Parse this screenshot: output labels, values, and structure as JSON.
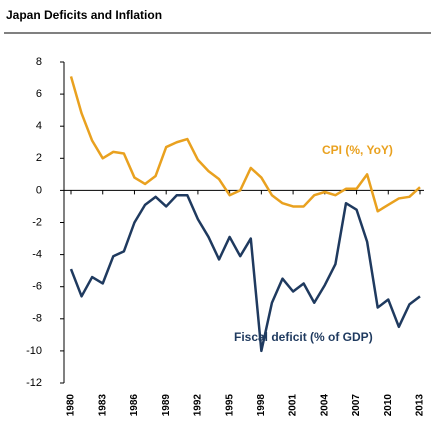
{
  "chart_data": {
    "type": "line",
    "title": "Japan Deficits and Inflation",
    "x": [
      1980,
      1981,
      1982,
      1983,
      1984,
      1985,
      1986,
      1987,
      1988,
      1989,
      1990,
      1991,
      1992,
      1993,
      1994,
      1995,
      1996,
      1997,
      1998,
      1999,
      2000,
      2001,
      2002,
      2003,
      2004,
      2005,
      2006,
      2007,
      2008,
      2009,
      2010,
      2011,
      2012,
      2013
    ],
    "series": [
      {
        "name": "CPI (%, YoY)",
        "color": "#e9a11f",
        "values": [
          7.1,
          4.8,
          3.1,
          2.0,
          2.4,
          2.3,
          0.8,
          0.4,
          0.9,
          2.7,
          3.0,
          3.2,
          1.9,
          1.2,
          0.7,
          -0.3,
          0.0,
          1.4,
          0.8,
          -0.3,
          -0.8,
          -1.0,
          -1.0,
          -0.3,
          -0.1,
          -0.3,
          0.1,
          0.1,
          1.0,
          -1.3,
          -0.9,
          -0.5,
          -0.4,
          0.2
        ]
      },
      {
        "name": "Fiscal deficit (% of GDP)",
        "color": "#1f3a5f",
        "values": [
          -4.9,
          -6.6,
          -5.4,
          -5.8,
          -4.1,
          -3.8,
          -2.0,
          -0.9,
          -0.4,
          -1.0,
          -0.3,
          -0.3,
          -1.8,
          -2.9,
          -4.3,
          -2.9,
          -4.1,
          -3.0,
          -10.0,
          -7.0,
          -5.5,
          -6.3,
          -5.8,
          -7.0,
          -5.9,
          -4.6,
          -0.8,
          -1.2,
          -3.2,
          -7.3,
          -6.8,
          -8.5,
          -7.1,
          -6.6
        ]
      }
    ],
    "xlim": [
      1980,
      2013
    ],
    "xticks": [
      1980,
      1983,
      1986,
      1989,
      1992,
      1995,
      1998,
      2001,
      2004,
      2007,
      2010,
      2013
    ],
    "ylim": [
      -12,
      8
    ],
    "yticks": [
      -12,
      -10,
      -8,
      -6,
      -4,
      -2,
      0,
      2,
      4,
      6,
      8
    ]
  }
}
